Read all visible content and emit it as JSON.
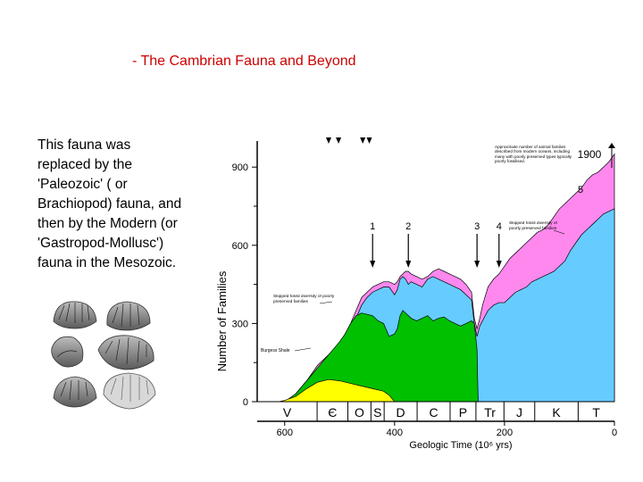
{
  "slide": {
    "title": "- The Cambrian Fauna and Beyond",
    "body_lines": [
      "This fauna was",
      "replaced by the",
      "'Paleozoic' ( or",
      "Brachiopod) fauna, and",
      "then by the Modern (or",
      "'Gastropod-Mollusc')",
      "fauna in the Mesozoic."
    ]
  },
  "chart_data": {
    "type": "area",
    "title": "",
    "xlabel": "Geologic Time (10⁶ yrs)",
    "ylabel": "Number of Families",
    "xlim": [
      650,
      0
    ],
    "ylim": [
      0,
      1000
    ],
    "x_ticks": [
      "600",
      "400",
      "200",
      "0"
    ],
    "y_ticks": [
      "0",
      "300",
      "600",
      "900"
    ],
    "periods": [
      "V",
      "Є",
      "O",
      "S",
      "D",
      "C",
      "P",
      "Tr",
      "J",
      "K",
      "T"
    ],
    "event_numbers": [
      "1",
      "2",
      "3",
      "4",
      "5"
    ],
    "top_label": "1900",
    "annotations": {
      "modern_families": "Approximate number of animal families described from modern oceans, including many with poorly preserved types typically poorly fossilised.",
      "skipped_right": "Skipped fossil diversity of poorly preserved families",
      "skipped_left": "Skipped fossil diversity of poorly preserved families",
      "burgess": "Burgess Shale"
    },
    "series": [
      {
        "color": "#ffff00",
        "x": [
          610,
          600,
          580,
          560,
          540,
          520,
          500,
          480,
          460,
          440,
          420,
          410,
          400
        ],
        "y": [
          0,
          5,
          20,
          50,
          75,
          85,
          80,
          70,
          60,
          50,
          40,
          25,
          0
        ]
      },
      {
        "color": "#00c000",
        "x": [
          600,
          580,
          560,
          540,
          520,
          500,
          490,
          480,
          470,
          460,
          440,
          430,
          420,
          410,
          400,
          395,
          390,
          385,
          380,
          375,
          370,
          360,
          350,
          340,
          330,
          320,
          310,
          300,
          290,
          280,
          270,
          260,
          255,
          250,
          248
        ],
        "y": [
          0,
          30,
          80,
          130,
          180,
          230,
          260,
          300,
          330,
          340,
          330,
          310,
          300,
          250,
          260,
          280,
          330,
          350,
          340,
          330,
          320,
          310,
          320,
          330,
          310,
          320,
          325,
          310,
          300,
          290,
          300,
          310,
          300,
          200,
          0
        ]
      },
      {
        "color": "#66ccff",
        "x": [
          600,
          580,
          560,
          540,
          520,
          500,
          490,
          480,
          470,
          460,
          450,
          440,
          430,
          420,
          410,
          400,
          395,
          390,
          385,
          380,
          375,
          370,
          360,
          350,
          340,
          330,
          320,
          310,
          300,
          290,
          280,
          270,
          260,
          255,
          250,
          245,
          240,
          230,
          220,
          210,
          200,
          190,
          180,
          170,
          160,
          150,
          140,
          130,
          120,
          110,
          100,
          90,
          80,
          70,
          60,
          50,
          40,
          30,
          20,
          10,
          0
        ],
        "y": [
          0,
          20,
          60,
          110,
          150,
          190,
          230,
          270,
          320,
          370,
          400,
          420,
          430,
          440,
          440,
          410,
          430,
          470,
          480,
          470,
          450,
          460,
          450,
          440,
          470,
          480,
          470,
          460,
          450,
          440,
          430,
          410,
          390,
          300,
          250,
          290,
          310,
          350,
          370,
          380,
          380,
          400,
          420,
          430,
          440,
          460,
          470,
          480,
          490,
          500,
          520,
          540,
          580,
          610,
          640,
          660,
          680,
          700,
          720,
          730,
          740
        ]
      },
      {
        "color": "#ff88ee",
        "x": [
          600,
          580,
          560,
          540,
          520,
          500,
          490,
          480,
          470,
          460,
          450,
          440,
          430,
          420,
          410,
          400,
          395,
          390,
          385,
          380,
          375,
          370,
          360,
          350,
          340,
          330,
          320,
          310,
          300,
          290,
          280,
          270,
          260,
          255,
          250,
          245,
          240,
          230,
          220,
          210,
          200,
          190,
          180,
          170,
          160,
          150,
          140,
          130,
          120,
          110,
          100,
          90,
          80,
          70,
          60,
          50,
          40,
          30,
          20,
          10,
          0
        ],
        "y": [
          0,
          30,
          80,
          140,
          180,
          220,
          260,
          300,
          350,
          400,
          420,
          440,
          450,
          460,
          460,
          450,
          460,
          480,
          490,
          500,
          500,
          490,
          480,
          470,
          480,
          500,
          510,
          500,
          490,
          480,
          470,
          450,
          420,
          320,
          280,
          320,
          370,
          440,
          470,
          490,
          520,
          550,
          570,
          590,
          610,
          630,
          650,
          660,
          680,
          710,
          740,
          760,
          780,
          800,
          820,
          850,
          870,
          880,
          900,
          920,
          950
        ]
      }
    ],
    "extinction_markers": [
      {
        "x": 440,
        "label": "1"
      },
      {
        "x": 375,
        "label": "2"
      },
      {
        "x": 250,
        "label": "3"
      },
      {
        "x": 210,
        "label": "4"
      },
      {
        "x": 1,
        "label": "5"
      }
    ]
  }
}
